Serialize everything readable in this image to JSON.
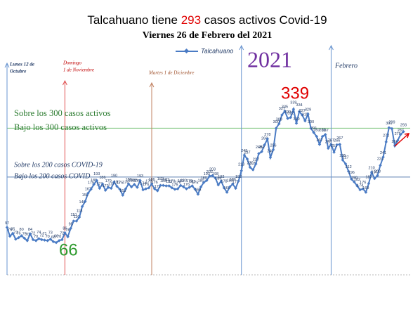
{
  "chart_data": {
    "type": "line",
    "title": [
      "Talcahuano tiene ",
      "293",
      " casos activos Covid-19"
    ],
    "title_colors": [
      "#000000",
      "#e00000",
      "#000000"
    ],
    "subtitle": "Viernes 26 de Febrero del 2021",
    "ylim": [
      0,
      440
    ],
    "series": [
      {
        "name": "Talcahuano",
        "color": "#4a7bc4",
        "values": [
          97,
          79,
          85,
          73,
          76,
          80,
          75,
          70,
          84,
          72,
          70,
          74,
          72,
          71,
          70,
          73,
          68,
          66,
          70,
          72,
          86,
          78,
          95,
          110,
          110,
          118,
          140,
          150,
          167,
          175,
          185,
          193,
          177,
          186,
          173,
          179,
          177,
          190,
          181,
          175,
          163,
          176,
          186,
          180,
          185,
          179,
          193,
          174,
          176,
          178,
          186,
          176,
          172,
          183,
          183,
          182,
          182,
          178,
          175,
          176,
          183,
          180,
          176,
          179,
          182,
          175,
          165,
          180,
          189,
          193,
          202,
          203,
          198,
          184,
          192,
          178,
          169,
          180,
          186,
          177,
          192,
          213,
          245,
          237,
          220,
          215,
          227,
          248,
          252,
          266,
          278,
          240,
          256,
          300,
          309,
          327,
          335,
          320,
          322,
          339,
          310,
          334,
          327,
          315,
          329,
          300,
          291,
          283,
          267,
          283,
          287,
          259,
          267,
          251,
          266,
          267,
          235,
          227,
          212,
          196,
          190,
          182,
          174,
          176,
          169,
          187,
          210,
          197,
          203,
          224,
          241,
          272,
          301,
          299,
          264,
          275,
          287,
          293
        ]
      }
    ],
    "hlines": [
      {
        "value": 300,
        "color": "#7cc47c"
      },
      {
        "value": 200,
        "color": "#5b7fb0"
      }
    ],
    "vlines": [
      {
        "index": 0,
        "color": "#6a95d0",
        "label": [
          "Lunes 12 de",
          "Octubre"
        ],
        "label_color": "#1f3864"
      },
      {
        "index": 20,
        "color": "#e05050",
        "label": [
          "Domingo",
          "1 de Noviembre"
        ],
        "label_color": "#c00000"
      },
      {
        "index": 50,
        "color": "#c08060",
        "label": [
          "Martes 1 de Diciembre"
        ],
        "label_color": "#a0522d"
      },
      {
        "index": 81,
        "color": "#6a95d0",
        "label": [
          "2021"
        ],
        "label_color": "#7030a0"
      },
      {
        "index": 112,
        "color": "#6a95d0",
        "label": [
          "Febrero"
        ],
        "label_color": "#1f3864"
      }
    ],
    "annotations": [
      {
        "text": "339",
        "color": "#e00000"
      },
      {
        "text": "66",
        "color": "#2e9a2e"
      },
      {
        "text": "Sobre los 300 casos activos",
        "color": "#2e7d32"
      },
      {
        "text": "Bajo los 300 casos activos",
        "color": "#2e7d32"
      },
      {
        "text": "Sobre los 200 casos COVID-19",
        "color": "#1f3864"
      },
      {
        "text": "Bajo los 200 casos COVID",
        "color": "#1f3864"
      }
    ]
  }
}
